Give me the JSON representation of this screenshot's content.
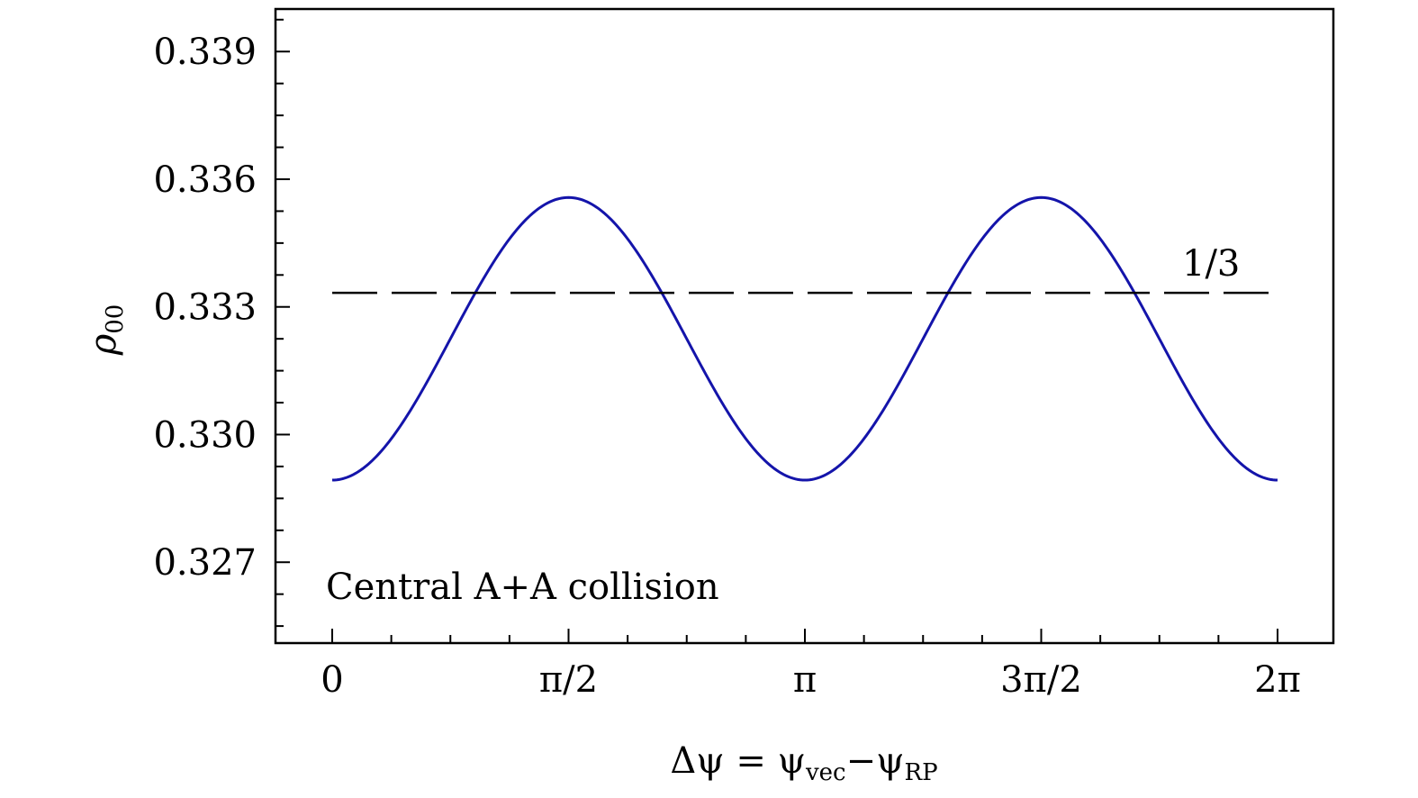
{
  "chart_data": {
    "type": "line",
    "title": "",
    "xlabel": "Δψ = ψvec−ψRP",
    "xlabel_parts": {
      "main": "Δψ = ψ",
      "sub1": "vec",
      "mid": "−ψ",
      "sub2": "RP"
    },
    "ylabel": "ρ00",
    "ylabel_parts": {
      "main": "ρ",
      "sub": "00"
    },
    "xlim": [
      0,
      6.283185307
    ],
    "ylim": [
      0.3251,
      0.34
    ],
    "x_ticks": [
      {
        "value": 0,
        "label": "0"
      },
      {
        "value": 1.570796327,
        "label": "π/2"
      },
      {
        "value": 3.141592654,
        "label": "π"
      },
      {
        "value": 4.71238898,
        "label": "3π/2"
      },
      {
        "value": 6.283185307,
        "label": "2π"
      }
    ],
    "x_minor_step": 0.392699082,
    "y_ticks": [
      {
        "value": 0.327,
        "label": "0.327"
      },
      {
        "value": 0.33,
        "label": "0.330"
      },
      {
        "value": 0.333,
        "label": "0.333"
      },
      {
        "value": 0.336,
        "label": "0.336"
      },
      {
        "value": 0.339,
        "label": "0.339"
      }
    ],
    "y_minor_step": 0.00075,
    "grid": false,
    "series": [
      {
        "style": "solid",
        "color": "#1414aa",
        "formula": "y = 0.33225 - 0.00332*cos(2x)",
        "x": [
          0,
          0.3927,
          0.7854,
          1.1781,
          1.5708,
          1.9635,
          2.3562,
          2.7489,
          3.1416,
          3.5343,
          3.927,
          4.3197,
          4.7124,
          5.1051,
          5.4978,
          5.8905,
          6.2832
        ],
        "y": [
          0.3289,
          0.3299,
          0.3323,
          0.3346,
          0.3356,
          0.3346,
          0.3323,
          0.3299,
          0.3289,
          0.3299,
          0.3323,
          0.3346,
          0.3356,
          0.3346,
          0.3323,
          0.3299,
          0.3289
        ]
      },
      {
        "style": "dashed",
        "color": "#000000",
        "x": [
          0,
          6.2832
        ],
        "y": [
          0.33333,
          0.33333
        ]
      }
    ],
    "annotations": [
      {
        "text": "1/3"
      },
      {
        "text": "Central A+A collision"
      }
    ]
  }
}
